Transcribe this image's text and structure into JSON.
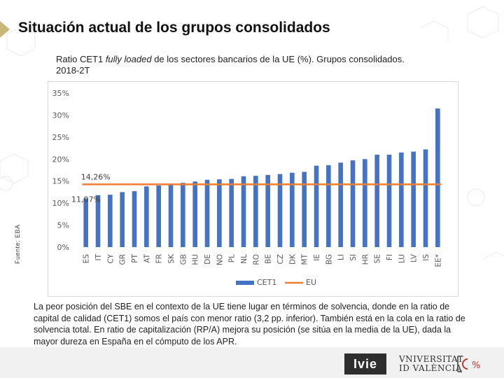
{
  "slide": {
    "title": "Situación actual de los grupos consolidados",
    "subtitle_a": "Ratio CET1 ",
    "subtitle_em": "fully loaded",
    "subtitle_b": " de los sectores bancarios de la UE (%). Grupos consolidados. 2018-2T",
    "source": "Fuente: EBA",
    "footnote": "La peor posición del SBE en el contexto de la UE tiene lugar en términos de solvencia, donde en la ratio de capital de calidad (CET1) somos el país con menor ratio (3,2 pp. inferior). También está en la cola en la ratio de solvencia total. En ratio de capitalización (RP/A) mejora su posición (se sitúa en la media de la UE), dada la mayor dureza en España en el cómputo de los APR."
  },
  "logos": {
    "ivie": "Ivie",
    "uv_line1": "VNIVERSITAT",
    "uv_line2": "ID VALÈNCIA",
    "mark_text": "%"
  },
  "chart_data": {
    "type": "bar",
    "categories": [
      "ES",
      "IT",
      "CY",
      "GR",
      "PT",
      "AT",
      "FR",
      "SK",
      "GB",
      "HU",
      "DE",
      "NO",
      "PL",
      "NL",
      "RO",
      "BE",
      "CZ",
      "DK",
      "MT",
      "IE",
      "BG",
      "LI",
      "SI",
      "HR",
      "SE",
      "FI",
      "LU",
      "LV",
      "IS",
      "EE*"
    ],
    "series": [
      {
        "name": "CET1",
        "color": "#4472c4",
        "values": [
          11.07,
          11.8,
          11.9,
          12.5,
          12.7,
          13.8,
          14.0,
          14.2,
          14.6,
          14.9,
          15.3,
          15.4,
          15.5,
          16.1,
          16.2,
          16.4,
          16.6,
          16.9,
          17.1,
          18.5,
          18.6,
          19.2,
          19.7,
          20.0,
          21.0,
          21.0,
          21.5,
          21.7,
          22.2,
          31.5
        ]
      },
      {
        "name": "EU",
        "color": "#ed7d31",
        "type": "line",
        "value": 14.26
      }
    ],
    "ylim": [
      0,
      35
    ],
    "yticks": [
      0,
      5,
      10,
      15,
      20,
      25,
      30,
      35
    ],
    "ytick_labels": [
      "0%",
      "5%",
      "10%",
      "15%",
      "20%",
      "25%",
      "30%",
      "35%"
    ],
    "annotations": [
      {
        "text": "14,26%",
        "target": "EU"
      },
      {
        "text": "11,07%",
        "target": "ES"
      }
    ],
    "legend": [
      "CET1",
      "EU"
    ],
    "legend_position": "bottom",
    "colors": {
      "bar": "#4472c4",
      "line": "#ed7d31",
      "axis_text": "#595959",
      "annot": "#404040"
    }
  }
}
